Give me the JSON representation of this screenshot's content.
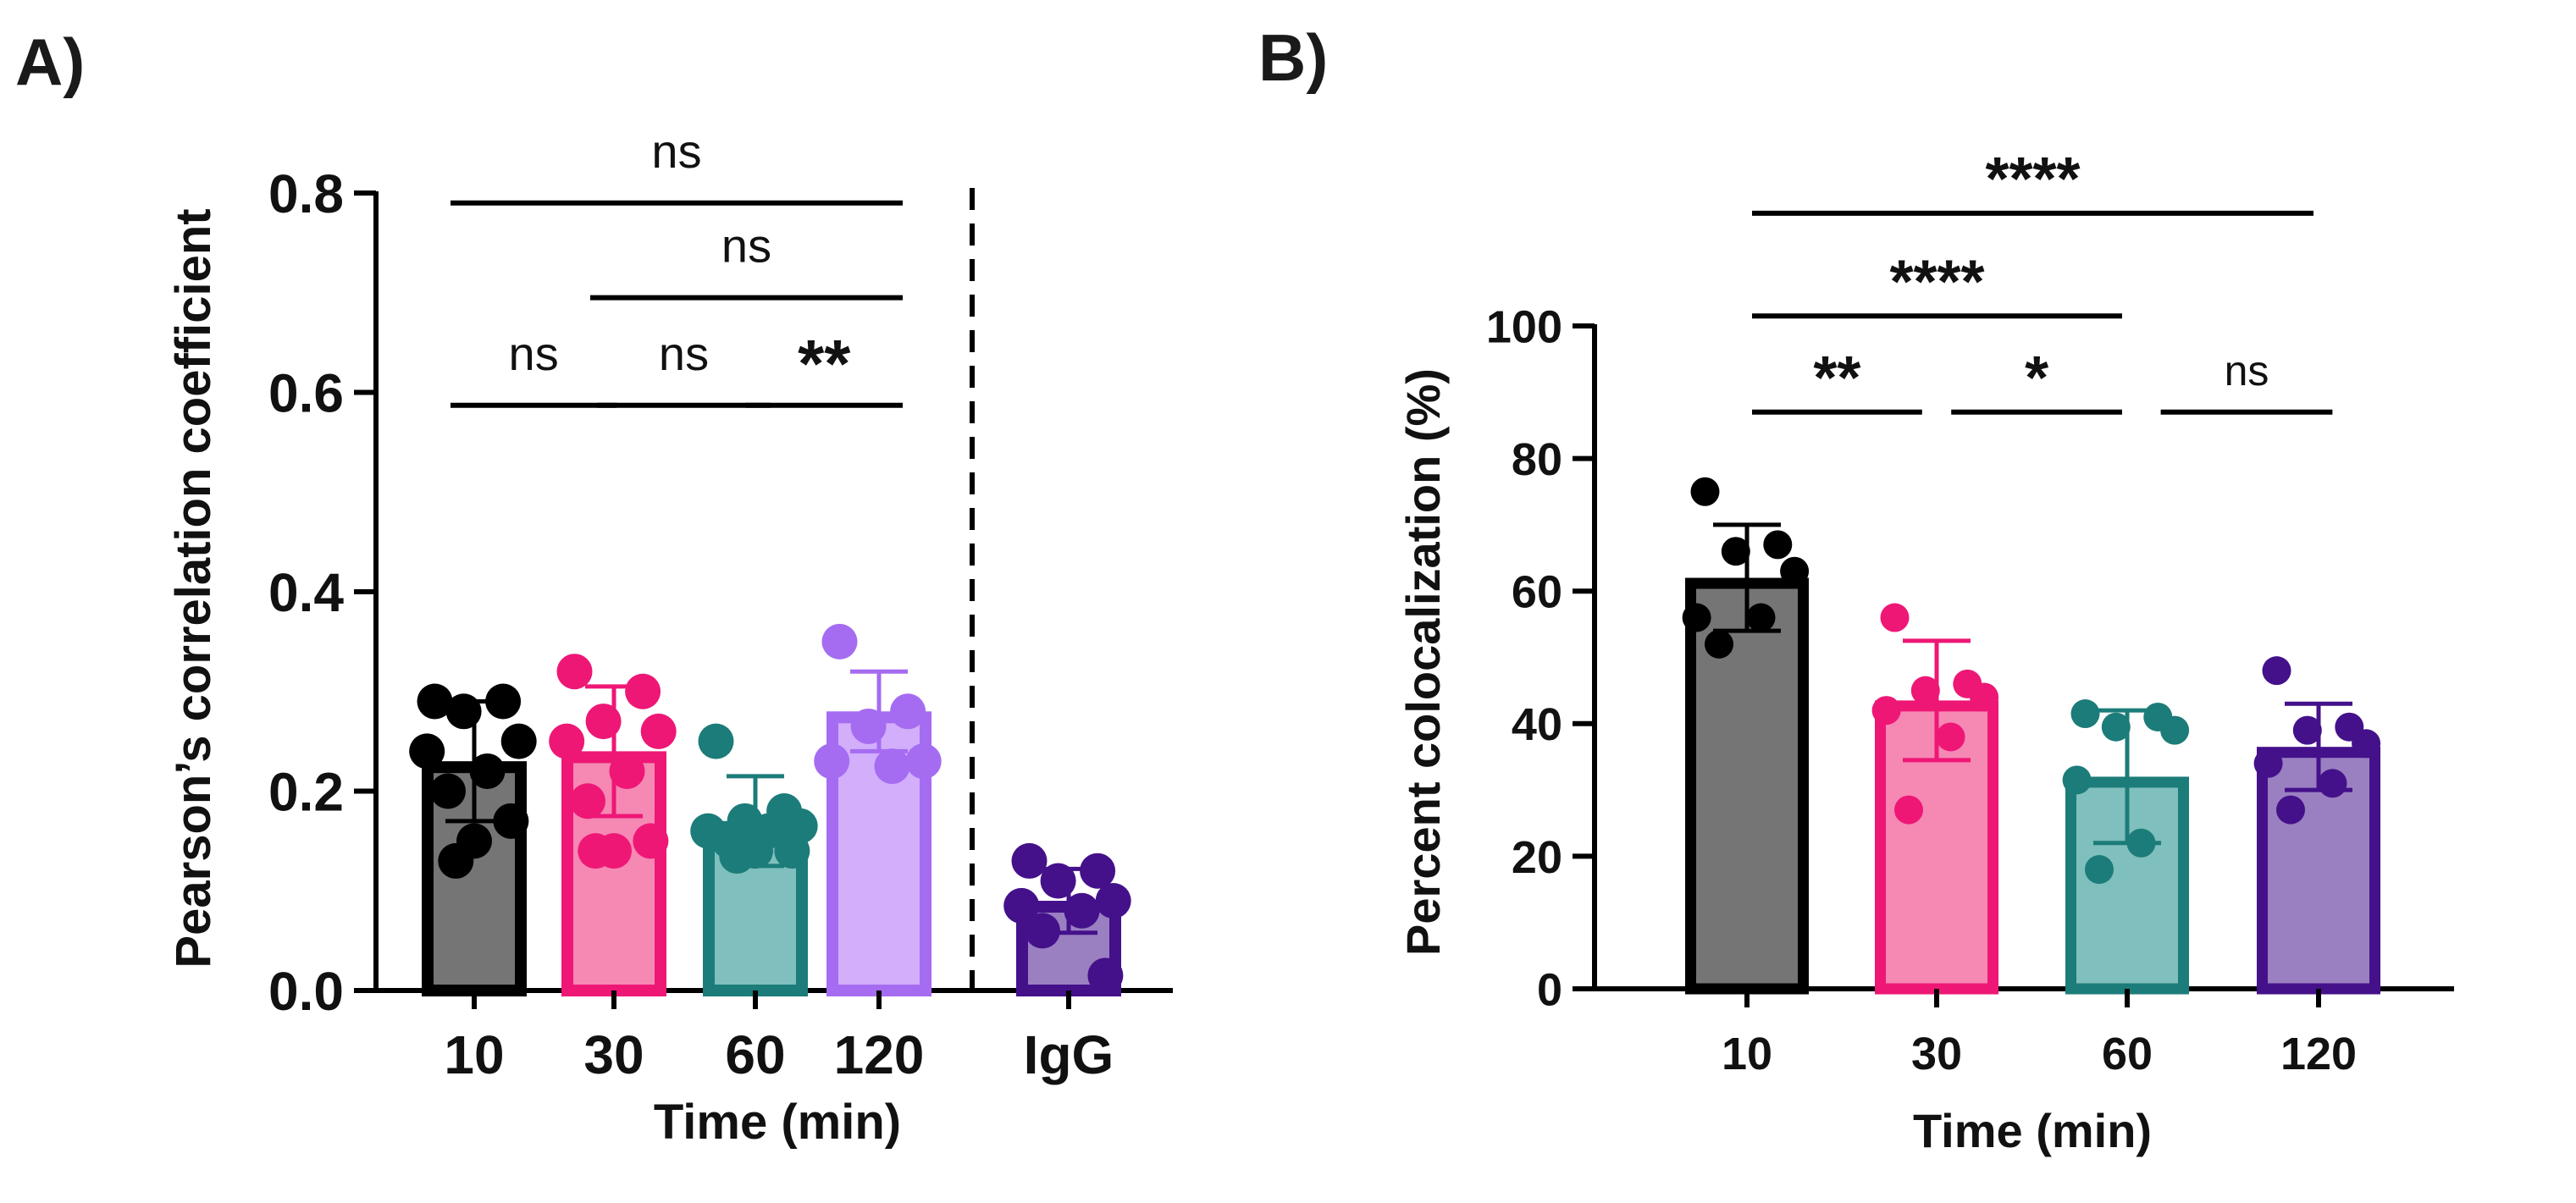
{
  "chart_data": [
    {
      "panel_label": "A)",
      "type": "bar",
      "title": "",
      "xlabel": "Time (min)",
      "ylabel": "Pearson’s correlation coefficient",
      "ylim": [
        0,
        0.8
      ],
      "yticks": [
        "0.0",
        "0.2",
        "0.4",
        "0.6",
        "0.8"
      ],
      "categories": [
        "10",
        "30",
        "60",
        "120",
        "IgG"
      ],
      "values": [
        0.23,
        0.24,
        0.17,
        0.28,
        0.09
      ],
      "error_sd": [
        0.06,
        0.065,
        0.045,
        0.04,
        0.032
      ],
      "points": [
        [
          0.29,
          0.29,
          0.28,
          0.25,
          0.24,
          0.22,
          0.2,
          0.17,
          0.15,
          0.13
        ],
        [
          0.32,
          0.3,
          0.27,
          0.26,
          0.25,
          0.22,
          0.19,
          0.15,
          0.14,
          0.14
        ],
        [
          0.25,
          0.18,
          0.17,
          0.165,
          0.16,
          0.16,
          0.15,
          0.14,
          0.14,
          0.135
        ],
        [
          0.35,
          0.28,
          0.265,
          0.23,
          0.23,
          0.225
        ],
        [
          0.13,
          0.12,
          0.11,
          0.09,
          0.085,
          0.08,
          0.06,
          0.015
        ]
      ],
      "fill_colors": [
        "#757575",
        "#f688b4",
        "#7fbfbd",
        "#d2aefb",
        "#9b80c1"
      ],
      "edge_colors": [
        "#000000",
        "#ee1776",
        "#1c7c79",
        "#a56cf2",
        "#44118a"
      ],
      "separator": "dashed line between 120 and IgG",
      "significance": [
        {
          "from": 0,
          "to": 3,
          "y": 0.79,
          "label": "ns"
        },
        {
          "from": 1,
          "to": 3,
          "y": 0.695,
          "label": "ns"
        },
        {
          "from": 0,
          "to": 0.85,
          "y": 0.587,
          "label": "ns"
        },
        {
          "from": 1.05,
          "to": 1.95,
          "y": 0.587,
          "label": "ns"
        },
        {
          "from": 2.1,
          "to": 3,
          "y": 0.587,
          "label": "**"
        }
      ]
    },
    {
      "panel_label": "B)",
      "type": "bar",
      "title": "",
      "xlabel": "Time (min)",
      "ylabel": "Percent colocalization (%)",
      "ylim": [
        0,
        100
      ],
      "yticks": [
        "0",
        "20",
        "40",
        "60",
        "80",
        "100"
      ],
      "categories": [
        "10",
        "30",
        "60",
        "120"
      ],
      "values": [
        62,
        43.5,
        32,
        36.5
      ],
      "error_sd": [
        8,
        9,
        10,
        6.5
      ],
      "points": [
        [
          75,
          67,
          66,
          63,
          56,
          56,
          52
        ],
        [
          56,
          46,
          45,
          44,
          42,
          38,
          27
        ],
        [
          41.5,
          41,
          39.5,
          39,
          31.5,
          22,
          18
        ],
        [
          48,
          39.5,
          39,
          37,
          34,
          31,
          27
        ]
      ],
      "fill_colors": [
        "#757575",
        "#f688b4",
        "#7fbfbd",
        "#9b80c1"
      ],
      "edge_colors": [
        "#000000",
        "#ee1776",
        "#1c7c79",
        "#44118a"
      ],
      "significance": [
        {
          "from": 0,
          "to": 3,
          "y": 117,
          "label": "****"
        },
        {
          "from": 0,
          "to": 2,
          "y": 101.5,
          "label": "****"
        },
        {
          "from": 0,
          "to": 0.95,
          "y": 87,
          "label": "**"
        },
        {
          "from": 1.05,
          "to": 2,
          "y": 87,
          "label": "*"
        },
        {
          "from": 2.15,
          "to": 3.1,
          "y": 87,
          "label": "ns"
        }
      ]
    }
  ]
}
